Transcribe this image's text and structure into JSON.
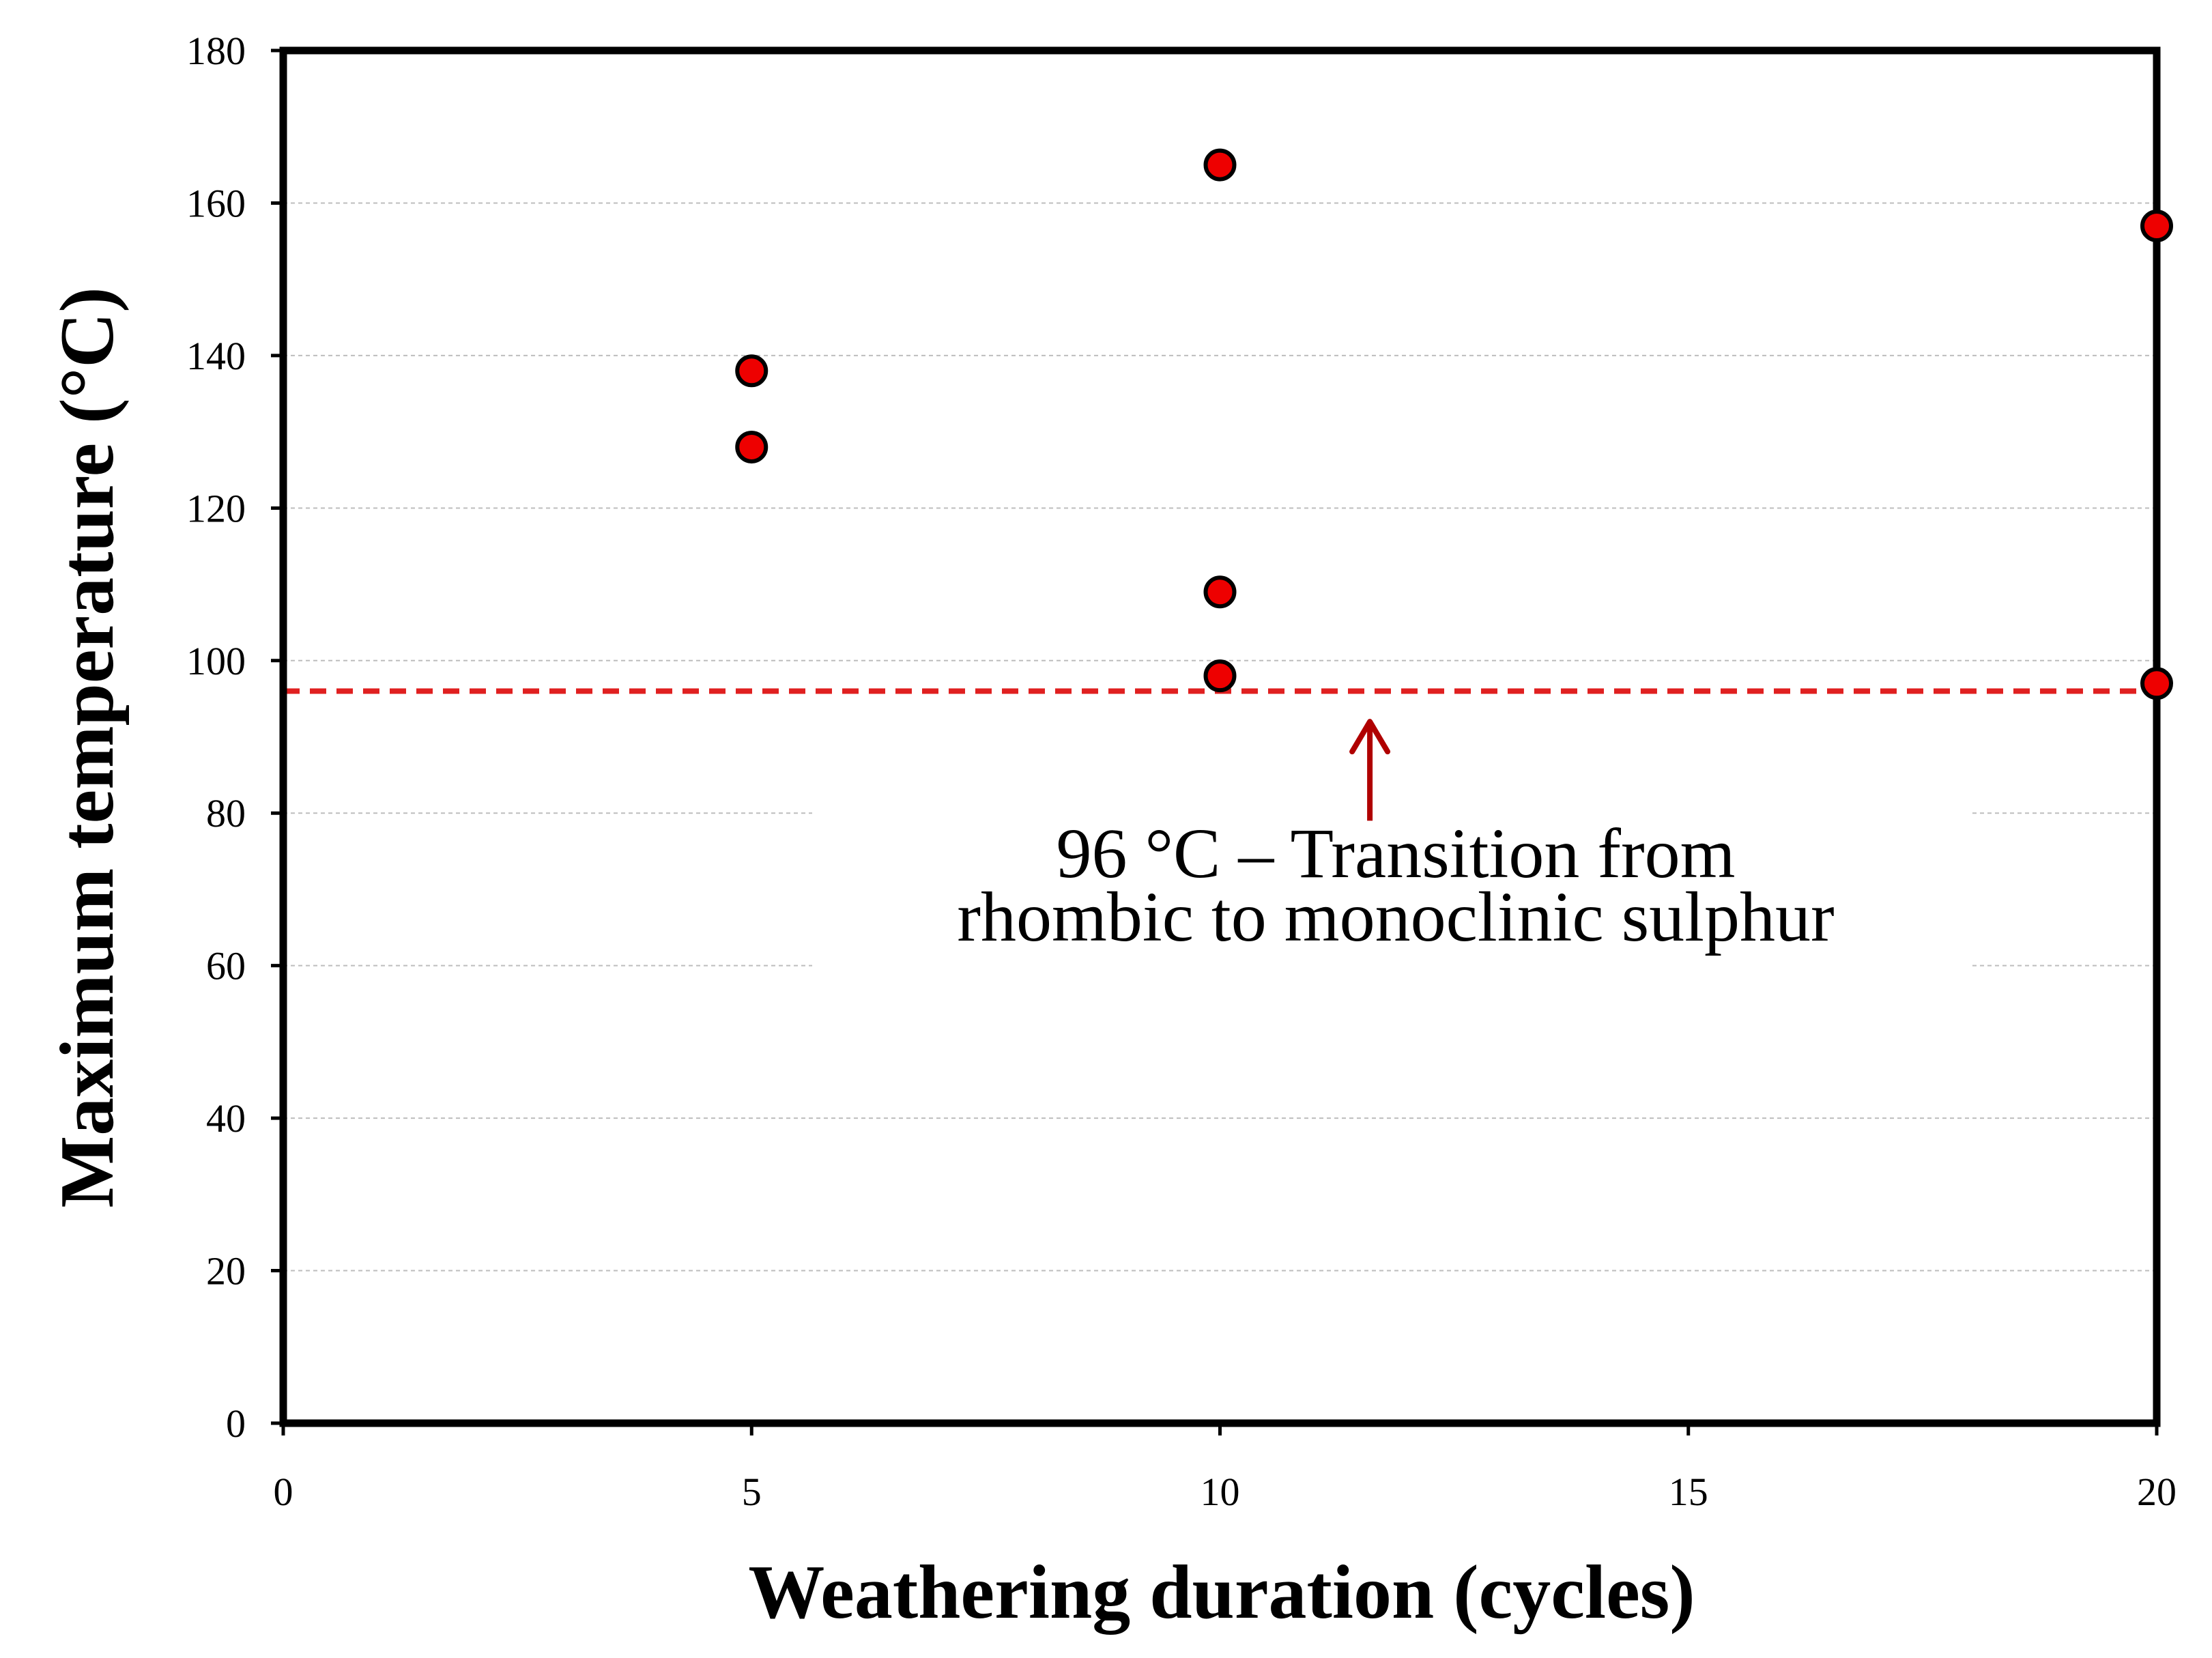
{
  "chart_data": {
    "type": "scatter",
    "xlabel": "Weathering duration (cycles)",
    "ylabel": "Maximum temperature  (°C)",
    "xlim": [
      0,
      20
    ],
    "ylim": [
      0,
      180
    ],
    "xticks": [
      0,
      5,
      10,
      15,
      20
    ],
    "yticks": [
      0,
      20,
      40,
      60,
      80,
      100,
      120,
      140,
      160,
      180
    ],
    "grid": "horizontal dashed",
    "series": [
      {
        "name": "Maximum temperature",
        "marker": "circle",
        "color": "#ee0000",
        "points": [
          {
            "x": 5,
            "y": 138
          },
          {
            "x": 5,
            "y": 128
          },
          {
            "x": 10,
            "y": 165
          },
          {
            "x": 10,
            "y": 109
          },
          {
            "x": 10,
            "y": 98
          },
          {
            "x": 20,
            "y": 157
          },
          {
            "x": 20,
            "y": 97
          }
        ]
      }
    ],
    "reference_line": {
      "y": 96,
      "style": "dashed",
      "color": "#e02020"
    },
    "annotation": {
      "line1": "96 °C – Transition from",
      "line2": "rhombic to monoclinic sulphur",
      "arrow_color": "#b00000",
      "arrow_x": 11.6,
      "arrow_from_y": 79,
      "arrow_to_y": 92
    }
  }
}
